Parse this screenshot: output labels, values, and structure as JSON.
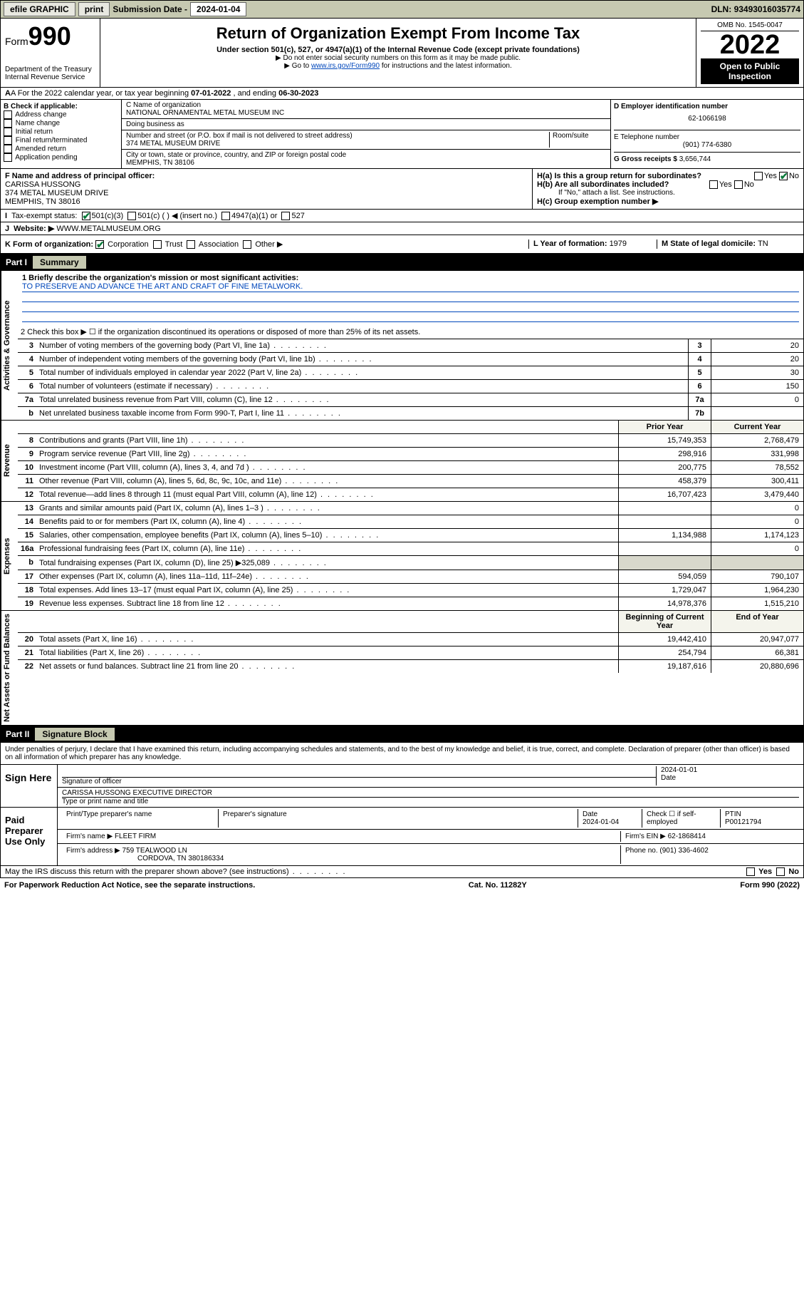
{
  "topbar": {
    "efile": "efile GRAPHIC",
    "print": "print",
    "submission_label": "Submission Date - ",
    "submission_date": "2024-01-04",
    "dln_label": "DLN: ",
    "dln": "93493016035774"
  },
  "header": {
    "form_label": "Form",
    "form_number": "990",
    "dept": "Department of the Treasury",
    "irs": "Internal Revenue Service",
    "title": "Return of Organization Exempt From Income Tax",
    "subtitle": "Under section 501(c), 527, or 4947(a)(1) of the Internal Revenue Code (except private foundations)",
    "note1": "▶ Do not enter social security numbers on this form as it may be made public.",
    "note2_pre": "▶ Go to ",
    "note2_link": "www.irs.gov/Form990",
    "note2_post": " for instructions and the latest information.",
    "omb": "OMB No. 1545-0047",
    "year": "2022",
    "inspection": "Open to Public Inspection"
  },
  "line_a": {
    "text_pre": "A For the 2022 calendar year, or tax year beginning ",
    "begin": "07-01-2022",
    "mid": " , and ending ",
    "end": "06-30-2023"
  },
  "section_b": {
    "title": "B Check if applicable:",
    "items": [
      "Address change",
      "Name change",
      "Initial return",
      "Final return/terminated",
      "Amended return",
      "Application pending"
    ]
  },
  "section_c": {
    "name_label": "C Name of organization",
    "name": "NATIONAL ORNAMENTAL METAL MUSEUM INC",
    "dba_label": "Doing business as",
    "street_label": "Number and street (or P.O. box if mail is not delivered to street address)",
    "room_label": "Room/suite",
    "street": "374 METAL MUSEUM DRIVE",
    "city_label": "City or town, state or province, country, and ZIP or foreign postal code",
    "city": "MEMPHIS, TN  38106"
  },
  "section_d": {
    "ein_label": "D Employer identification number",
    "ein": "62-1066198",
    "phone_label": "E Telephone number",
    "phone": "(901) 774-6380",
    "gross_label": "G Gross receipts $ ",
    "gross": "3,656,744"
  },
  "section_f": {
    "label": "F Name and address of principal officer:",
    "name": "CARISSA HUSSONG",
    "street": "374 METAL MUSEUM DRIVE",
    "city": "MEMPHIS, TN  38016"
  },
  "section_h": {
    "ha": "H(a) Is this a group return for subordinates?",
    "yes": "Yes",
    "no": "No",
    "hb": "H(b) Are all subordinates included?",
    "hb_note": "If \"No,\" attach a list. See instructions.",
    "hc": "H(c) Group exemption number ▶"
  },
  "row_i": {
    "label": "I",
    "text": "Tax-exempt status:",
    "opt1": "501(c)(3)",
    "opt2": "501(c) (  ) ◀ (insert no.)",
    "opt3": "4947(a)(1) or",
    "opt4": "527"
  },
  "row_j": {
    "label": "J",
    "text": "Website: ▶",
    "value": "WWW.METALMUSEUM.ORG"
  },
  "row_k": {
    "label": "K Form of organization:",
    "opts": [
      "Corporation",
      "Trust",
      "Association",
      "Other ▶"
    ],
    "l_label": "L Year of formation: ",
    "l_val": "1979",
    "m_label": "M State of legal domicile: ",
    "m_val": "TN"
  },
  "part1": {
    "label": "Part I",
    "title": "Summary"
  },
  "vtabs": {
    "gov": "Activities & Governance",
    "rev": "Revenue",
    "exp": "Expenses",
    "net": "Net Assets or Fund Balances"
  },
  "mission": {
    "label": "1  Briefly describe the organization's mission or most significant activities:",
    "text": "TO PRESERVE AND ADVANCE THE ART AND CRAFT OF FINE METALWORK."
  },
  "line2": "2   Check this box ▶ ☐  if the organization discontinued its operations or disposed of more than 25% of its net assets.",
  "gov_rows": [
    {
      "n": "3",
      "d": "Number of voting members of the governing body (Part VI, line 1a)",
      "b": "3",
      "v": "20"
    },
    {
      "n": "4",
      "d": "Number of independent voting members of the governing body (Part VI, line 1b)",
      "b": "4",
      "v": "20"
    },
    {
      "n": "5",
      "d": "Total number of individuals employed in calendar year 2022 (Part V, line 2a)",
      "b": "5",
      "v": "30"
    },
    {
      "n": "6",
      "d": "Total number of volunteers (estimate if necessary)",
      "b": "6",
      "v": "150"
    },
    {
      "n": "7a",
      "d": "Total unrelated business revenue from Part VIII, column (C), line 12",
      "b": "7a",
      "v": "0"
    },
    {
      "n": "b",
      "d": "Net unrelated business taxable income from Form 990-T, Part I, line 11",
      "b": "7b",
      "v": ""
    }
  ],
  "col_headers": {
    "prior": "Prior Year",
    "current": "Current Year",
    "boy": "Beginning of Current Year",
    "eoy": "End of Year"
  },
  "rev_rows": [
    {
      "n": "8",
      "d": "Contributions and grants (Part VIII, line 1h)",
      "p": "15,749,353",
      "c": "2,768,479"
    },
    {
      "n": "9",
      "d": "Program service revenue (Part VIII, line 2g)",
      "p": "298,916",
      "c": "331,998"
    },
    {
      "n": "10",
      "d": "Investment income (Part VIII, column (A), lines 3, 4, and 7d )",
      "p": "200,775",
      "c": "78,552"
    },
    {
      "n": "11",
      "d": "Other revenue (Part VIII, column (A), lines 5, 6d, 8c, 9c, 10c, and 11e)",
      "p": "458,379",
      "c": "300,411"
    },
    {
      "n": "12",
      "d": "Total revenue—add lines 8 through 11 (must equal Part VIII, column (A), line 12)",
      "p": "16,707,423",
      "c": "3,479,440"
    }
  ],
  "exp_rows": [
    {
      "n": "13",
      "d": "Grants and similar amounts paid (Part IX, column (A), lines 1–3 )",
      "p": "",
      "c": "0"
    },
    {
      "n": "14",
      "d": "Benefits paid to or for members (Part IX, column (A), line 4)",
      "p": "",
      "c": "0"
    },
    {
      "n": "15",
      "d": "Salaries, other compensation, employee benefits (Part IX, column (A), lines 5–10)",
      "p": "1,134,988",
      "c": "1,174,123"
    },
    {
      "n": "16a",
      "d": "Professional fundraising fees (Part IX, column (A), line 11e)",
      "p": "",
      "c": "0"
    },
    {
      "n": "b",
      "d": "Total fundraising expenses (Part IX, column (D), line 25) ▶325,089",
      "p": "grey",
      "c": "grey"
    },
    {
      "n": "17",
      "d": "Other expenses (Part IX, column (A), lines 11a–11d, 11f–24e)",
      "p": "594,059",
      "c": "790,107"
    },
    {
      "n": "18",
      "d": "Total expenses. Add lines 13–17 (must equal Part IX, column (A), line 25)",
      "p": "1,729,047",
      "c": "1,964,230"
    },
    {
      "n": "19",
      "d": "Revenue less expenses. Subtract line 18 from line 12",
      "p": "14,978,376",
      "c": "1,515,210"
    }
  ],
  "net_rows": [
    {
      "n": "20",
      "d": "Total assets (Part X, line 16)",
      "p": "19,442,410",
      "c": "20,947,077"
    },
    {
      "n": "21",
      "d": "Total liabilities (Part X, line 26)",
      "p": "254,794",
      "c": "66,381"
    },
    {
      "n": "22",
      "d": "Net assets or fund balances. Subtract line 21 from line 20",
      "p": "19,187,616",
      "c": "20,880,696"
    }
  ],
  "part2": {
    "label": "Part II",
    "title": "Signature Block"
  },
  "sig_text": "Under penalties of perjury, I declare that I have examined this return, including accompanying schedules and statements, and to the best of my knowledge and belief, it is true, correct, and complete. Declaration of preparer (other than officer) is based on all information of which preparer has any knowledge.",
  "sign_here": {
    "label": "Sign Here",
    "sig_label": "Signature of officer",
    "date_label": "Date",
    "date": "2024-01-01",
    "name": "CARISSA HUSSONG  EXECUTIVE DIRECTOR",
    "name_label": "Type or print name and title"
  },
  "paid_prep": {
    "label": "Paid Preparer Use Only",
    "h1": "Print/Type preparer's name",
    "h2": "Preparer's signature",
    "h3": "Date",
    "h3v": "2024-01-04",
    "h4": "Check ☐ if self-employed",
    "h5": "PTIN",
    "h5v": "P00121794",
    "firm_name_label": "Firm's name    ▶",
    "firm_name": "FLEET FIRM",
    "firm_ein_label": "Firm's EIN ▶",
    "firm_ein": "62-1868414",
    "firm_addr_label": "Firm's address ▶",
    "firm_addr": "759 TEALWOOD LN",
    "firm_city": "CORDOVA, TN  380186334",
    "phone_label": "Phone no. ",
    "phone": "(901) 336-4602"
  },
  "discuss": "May the IRS discuss this return with the preparer shown above? (see instructions)",
  "footer": {
    "left": "For Paperwork Reduction Act Notice, see the separate instructions.",
    "mid": "Cat. No. 11282Y",
    "right": "Form 990 (2022)"
  }
}
